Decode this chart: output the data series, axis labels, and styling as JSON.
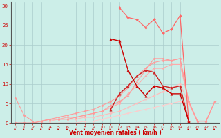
{
  "xlabel": "Vent moyen/en rafales ( km/h )",
  "bg_color": "#cceee8",
  "grid_color": "#aacccc",
  "axis_color": "#cc0000",
  "text_color": "#cc0000",
  "xlim": [
    -0.5,
    23.5
  ],
  "ylim": [
    0,
    31
  ],
  "xticks": [
    0,
    1,
    2,
    3,
    4,
    5,
    6,
    7,
    8,
    9,
    10,
    11,
    12,
    13,
    14,
    15,
    16,
    17,
    18,
    19,
    20,
    21,
    22,
    23
  ],
  "yticks": [
    0,
    5,
    10,
    15,
    20,
    25,
    30
  ],
  "series": [
    {
      "x": [
        0,
        1,
        2,
        3,
        4,
        5,
        6,
        7,
        8,
        9,
        10,
        11,
        12,
        13,
        14,
        15,
        16,
        17,
        18,
        19,
        20,
        21,
        22,
        23
      ],
      "y": [
        0,
        0,
        0,
        0,
        0,
        0,
        0,
        0,
        0.5,
        0.5,
        1,
        1.5,
        2,
        2.5,
        3,
        3.5,
        4,
        4.5,
        5,
        5.5,
        5,
        0.5,
        0.5,
        5.5
      ],
      "color": "#ffcccc",
      "marker": "D",
      "markersize": 1.5,
      "linewidth": 0.8
    },
    {
      "x": [
        0,
        1,
        2,
        3,
        4,
        5,
        6,
        7,
        8,
        9,
        10,
        11,
        12,
        13,
        14,
        15,
        16,
        17,
        18,
        19,
        20,
        21,
        22,
        23
      ],
      "y": [
        0,
        0,
        0,
        0.5,
        0.5,
        1,
        1,
        1,
        1.5,
        1.5,
        2,
        2.5,
        3,
        4,
        5,
        6,
        7,
        8,
        9,
        10,
        5,
        0.5,
        0.5,
        5.5
      ],
      "color": "#ffbbbb",
      "marker": "D",
      "markersize": 1.5,
      "linewidth": 0.8
    },
    {
      "x": [
        0,
        1,
        2,
        3,
        4,
        5,
        6,
        7,
        8,
        9,
        10,
        11,
        12,
        13,
        14,
        15,
        16,
        17,
        18,
        19,
        20,
        21,
        22,
        23
      ],
      "y": [
        0,
        0,
        0,
        0.5,
        1,
        1,
        1.5,
        1.5,
        2,
        2.5,
        3,
        4,
        5,
        7.5,
        9.5,
        12,
        14,
        14,
        15,
        15,
        5.5,
        0.5,
        0.5,
        5.5
      ],
      "color": "#ffaaaa",
      "marker": "D",
      "markersize": 1.5,
      "linewidth": 0.8
    },
    {
      "x": [
        0,
        1,
        2,
        3,
        4,
        5,
        6,
        7,
        8,
        9,
        10,
        11,
        12,
        13,
        14,
        15,
        16,
        17,
        18,
        19,
        20,
        21,
        22,
        23
      ],
      "y": [
        6.5,
        2,
        0.5,
        0.5,
        1,
        1,
        1,
        1.5,
        2,
        2.5,
        3,
        4.5,
        5.5,
        7,
        10.5,
        13.5,
        16.5,
        16.5,
        16,
        16.5,
        5.5,
        0.5,
        0.5,
        5.5
      ],
      "color": "#ff9999",
      "marker": "D",
      "markersize": 1.5,
      "linewidth": 0.8
    },
    {
      "x": [
        0,
        1,
        2,
        3,
        4,
        5,
        6,
        7,
        8,
        9,
        10,
        11,
        12,
        13,
        14,
        15,
        16,
        17,
        18,
        19,
        20,
        21,
        22,
        23
      ],
      "y": [
        0,
        0,
        0,
        0.5,
        1,
        1.5,
        2,
        2.5,
        3,
        3.5,
        4.5,
        5.5,
        7,
        9,
        12,
        14,
        15.5,
        16,
        16,
        16.5,
        5.5,
        0.5,
        0.5,
        5.5
      ],
      "color": "#ff9999",
      "marker": "D",
      "markersize": 1.5,
      "linewidth": 0.8
    },
    {
      "x": [
        11,
        12,
        13,
        14,
        15,
        16,
        17,
        18,
        19,
        20
      ],
      "y": [
        3.5,
        7.5,
        9.5,
        12,
        13.5,
        13,
        9.5,
        9,
        9.5,
        0.5
      ],
      "color": "#cc2222",
      "marker": "^",
      "markersize": 2.5,
      "linewidth": 1.0
    },
    {
      "x": [
        12,
        13,
        14,
        15,
        16,
        17,
        18,
        19,
        20
      ],
      "y": [
        29.5,
        27,
        26.5,
        24.5,
        26.5,
        23,
        24,
        27.5,
        0.5
      ],
      "color": "#ff6666",
      "marker": "D",
      "markersize": 2.0,
      "linewidth": 0.9
    },
    {
      "x": [
        11,
        12,
        13,
        14,
        15,
        16,
        17,
        18,
        19,
        20
      ],
      "y": [
        21.5,
        21,
        13.5,
        9.5,
        7,
        9.5,
        9,
        7.5,
        7.5,
        0.5
      ],
      "color": "#cc0000",
      "marker": "^",
      "markersize": 2.5,
      "linewidth": 1.0
    }
  ],
  "wind_arrows_x": [
    0,
    1,
    2,
    3,
    4,
    5,
    6,
    7,
    8,
    9,
    10,
    11,
    12,
    13,
    14,
    15,
    16,
    17,
    18,
    19,
    20,
    21,
    22,
    23
  ],
  "wind_arrows_angles": [
    225,
    225,
    225,
    225,
    225,
    225,
    225,
    225,
    225,
    225,
    225,
    225,
    225,
    225,
    225,
    225,
    225,
    225,
    225,
    225,
    225,
    225,
    225,
    225
  ]
}
